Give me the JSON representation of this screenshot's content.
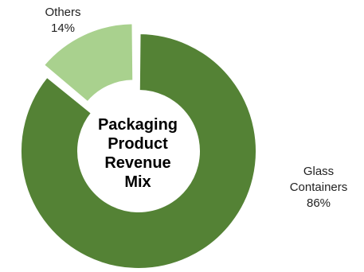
{
  "chart_data": {
    "type": "pie",
    "style": "donut",
    "title_lines": [
      "Packaging",
      "Product",
      "Revenue",
      "Mix"
    ],
    "slices": [
      {
        "label_lines": [
          "Glass",
          "Containers"
        ],
        "value_label": "86%",
        "value": 86,
        "color": "#548235",
        "exploded": false
      },
      {
        "label_lines": [
          "Others"
        ],
        "value_label": "14%",
        "value": 14,
        "color": "#a9d18e",
        "exploded": true
      }
    ],
    "legend": "none"
  }
}
